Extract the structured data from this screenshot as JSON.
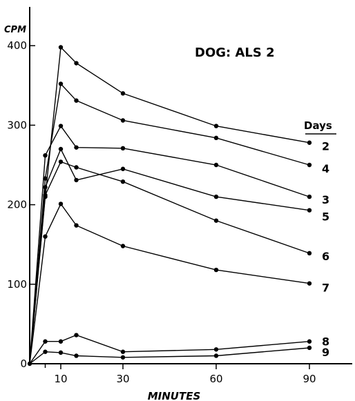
{
  "chart_data": {
    "type": "line",
    "title": "DOG: ALS 2",
    "xlabel": "MINUTES",
    "ylabel": "CPM",
    "xlim": [
      0,
      102
    ],
    "ylim": [
      0,
      420
    ],
    "xticks": [
      10,
      30,
      60,
      90
    ],
    "xtick_labels": [
      "10",
      "30",
      "60",
      "90"
    ],
    "xticks_minor": [
      5
    ],
    "yticks": [
      0,
      100,
      200,
      300,
      400
    ],
    "ytick_labels": [
      "0",
      "100",
      "200",
      "300",
      "400"
    ],
    "legend_title": "Days",
    "x": [
      0,
      5,
      10,
      15,
      30,
      60,
      90
    ],
    "series": [
      {
        "name": "2",
        "values": [
          0,
          210,
          398,
          378,
          340,
          299,
          278
        ]
      },
      {
        "name": "4",
        "values": [
          0,
          233,
          352,
          331,
          306,
          284,
          250
        ]
      },
      {
        "name": "3",
        "values": [
          0,
          262,
          299,
          272,
          271,
          250,
          210
        ]
      },
      {
        "name": "5",
        "values": [
          0,
          222,
          270,
          231,
          245,
          210,
          193
        ]
      },
      {
        "name": "6",
        "values": [
          0,
          212,
          254,
          247,
          229,
          180,
          139
        ]
      },
      {
        "name": "7",
        "values": [
          0,
          160,
          201,
          174,
          148,
          118,
          101
        ]
      },
      {
        "name": "8",
        "values": [
          0,
          28,
          28,
          36,
          15,
          18,
          28
        ]
      },
      {
        "name": "9",
        "values": [
          0,
          15,
          14,
          10,
          8,
          10,
          20
        ]
      }
    ]
  }
}
